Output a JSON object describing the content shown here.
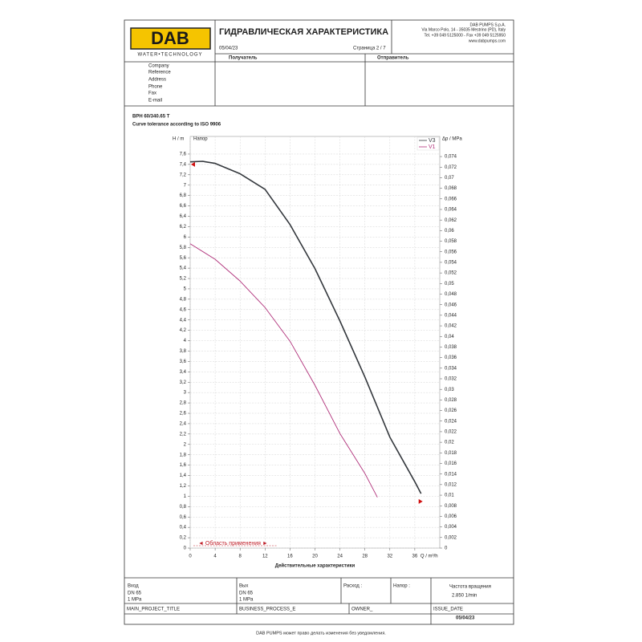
{
  "header": {
    "logo": "DAB",
    "tagline": "WATER•TECHNOLOGY",
    "title": "ГИДРАВЛИЧЕСКАЯ ХАРАКТЕРИСТИКА",
    "date": "05/04/23",
    "page": "Страница 2 / 7",
    "company": [
      "DAB PUMPS S.p.A.",
      "Via Marco Polo, 14 - 35035 Mestrino (PD), Italy",
      "Tel. +39 049 5125000 - Fax +39 049 5125950",
      "www.dabpumps.com"
    ],
    "recipient": "Получатель",
    "sender": "Отправитель",
    "fields": [
      "Company",
      "Reference",
      "Address",
      "Phone",
      "Fax",
      "E-mail"
    ]
  },
  "product": {
    "name": "BPH 60/340.65 T",
    "tolerance": "Curve tolerance according to ISO 9906"
  },
  "chart_data": {
    "type": "line",
    "ylabel": "H / m",
    "y2label": "Δp / MPa",
    "xunit": "Q / m³/h",
    "xlabel": "Действительные характеристики",
    "annotation": "Напор",
    "range_label": "◄ Область применения ►",
    "xlim": [
      0,
      40
    ],
    "xticks": [
      0,
      4,
      8,
      12,
      16,
      20,
      24,
      28,
      32,
      36
    ],
    "ylim": [
      0,
      7.94
    ],
    "yticks": [
      0,
      {
        "value": 0.2,
        "label": "0,2"
      },
      {
        "value": 0.4,
        "label": "0,4"
      },
      {
        "value": 0.6,
        "label": "0,6"
      },
      {
        "value": 0.8,
        "label": "0,8"
      },
      1,
      {
        "value": 1.2,
        "label": "1,2"
      },
      {
        "value": 1.4,
        "label": "1,4"
      },
      {
        "value": 1.6,
        "label": "1,6"
      },
      {
        "value": 1.8,
        "label": "1,8"
      },
      2,
      {
        "value": 2.2,
        "label": "2,2"
      },
      {
        "value": 2.4,
        "label": "2,4"
      },
      {
        "value": 2.6,
        "label": "2,6"
      },
      {
        "value": 2.8,
        "label": "2,8"
      },
      3,
      {
        "value": 3.2,
        "label": "3,2"
      },
      {
        "value": 3.4,
        "label": "3,4"
      },
      {
        "value": 3.6,
        "label": "3,6"
      },
      {
        "value": 3.8,
        "label": "3,8"
      },
      4,
      {
        "value": 4.2,
        "label": "4,2"
      },
      {
        "value": 4.4,
        "label": "4,4"
      },
      {
        "value": 4.6,
        "label": "4,6"
      },
      {
        "value": 4.8,
        "label": "4,8"
      },
      5,
      {
        "value": 5.2,
        "label": "5,2"
      },
      {
        "value": 5.4,
        "label": "5,4"
      },
      {
        "value": 5.6,
        "label": "5,6"
      },
      {
        "value": 5.8,
        "label": "5,8"
      },
      6,
      {
        "value": 6.2,
        "label": "6,2"
      },
      {
        "value": 6.4,
        "label": "6,4"
      },
      {
        "value": 6.6,
        "label": "6,6"
      },
      {
        "value": 6.8,
        "label": "6,8"
      },
      7,
      {
        "value": 7.2,
        "label": "7,2"
      },
      {
        "value": 7.4,
        "label": "7,4"
      },
      {
        "value": 7.6,
        "label": "7,6"
      }
    ],
    "y2lim": [
      0,
      0.0778
    ],
    "y2ticks": [
      0,
      {
        "value": 0.002,
        "label": "0,002"
      },
      {
        "value": 0.004,
        "label": "0,004"
      },
      {
        "value": 0.006,
        "label": "0,006"
      },
      {
        "value": 0.008,
        "label": "0,008"
      },
      {
        "value": 0.01,
        "label": "0,01"
      },
      {
        "value": 0.012,
        "label": "0,012"
      },
      {
        "value": 0.014,
        "label": "0,014"
      },
      {
        "value": 0.016,
        "label": "0,016"
      },
      {
        "value": 0.018,
        "label": "0,018"
      },
      {
        "value": 0.02,
        "label": "0,02"
      },
      {
        "value": 0.022,
        "label": "0,022"
      },
      {
        "value": 0.024,
        "label": "0,024"
      },
      {
        "value": 0.026,
        "label": "0,026"
      },
      {
        "value": 0.028,
        "label": "0,028"
      },
      {
        "value": 0.03,
        "label": "0,03"
      },
      {
        "value": 0.032,
        "label": "0,032"
      },
      {
        "value": 0.034,
        "label": "0,034"
      },
      {
        "value": 0.036,
        "label": "0,036"
      },
      {
        "value": 0.038,
        "label": "0,038"
      },
      {
        "value": 0.04,
        "label": "0,04"
      },
      {
        "value": 0.042,
        "label": "0,042"
      },
      {
        "value": 0.044,
        "label": "0,044"
      },
      {
        "value": 0.046,
        "label": "0,046"
      },
      {
        "value": 0.048,
        "label": "0,048"
      },
      {
        "value": 0.05,
        "label": "0,05"
      },
      {
        "value": 0.052,
        "label": "0,052"
      },
      {
        "value": 0.054,
        "label": "0,054"
      },
      {
        "value": 0.056,
        "label": "0,056"
      },
      {
        "value": 0.058,
        "label": "0,058"
      },
      {
        "value": 0.06,
        "label": "0,06"
      },
      {
        "value": 0.062,
        "label": "0,062"
      },
      {
        "value": 0.064,
        "label": "0,064"
      },
      {
        "value": 0.066,
        "label": "0,066"
      },
      {
        "value": 0.068,
        "label": "0,068"
      },
      {
        "value": 0.07,
        "label": "0,07"
      },
      {
        "value": 0.072,
        "label": "0,072"
      },
      {
        "value": 0.074,
        "label": "0,074"
      }
    ],
    "grid": true,
    "series": [
      {
        "name": "V3",
        "color": "#34383d",
        "x": [
          0,
          2,
          4,
          8,
          12,
          16,
          20,
          24,
          28,
          32,
          36,
          37
        ],
        "values": [
          7.45,
          7.46,
          7.42,
          7.22,
          6.92,
          6.24,
          5.39,
          4.38,
          3.3,
          2.14,
          1.28,
          1.05
        ]
      },
      {
        "name": "V1",
        "color": "#b0307a",
        "x": [
          0,
          4,
          8,
          12,
          16,
          20,
          24,
          28,
          30
        ],
        "values": [
          5.87,
          5.57,
          5.15,
          4.64,
          3.99,
          3.14,
          2.21,
          1.44,
          0.98
        ]
      }
    ]
  },
  "footer": {
    "inlet": [
      "Вход",
      "DN 65",
      "1 MPa"
    ],
    "outlet": [
      "Вых",
      "DN 65",
      "1 MPa"
    ],
    "flow": "Расход :",
    "head": "Напор :",
    "speed": [
      "Частота вращения",
      "2.850 1/min"
    ],
    "project": "MAIN_PROJECT_TITLE",
    "process": "BUSINESS_PROCESS_E",
    "owner": "OWNER_",
    "issue": "ISSUE_DATE",
    "issue_date": "05/04/23",
    "notice": "DAB PUMPS может право делать изменения без уведомления."
  }
}
